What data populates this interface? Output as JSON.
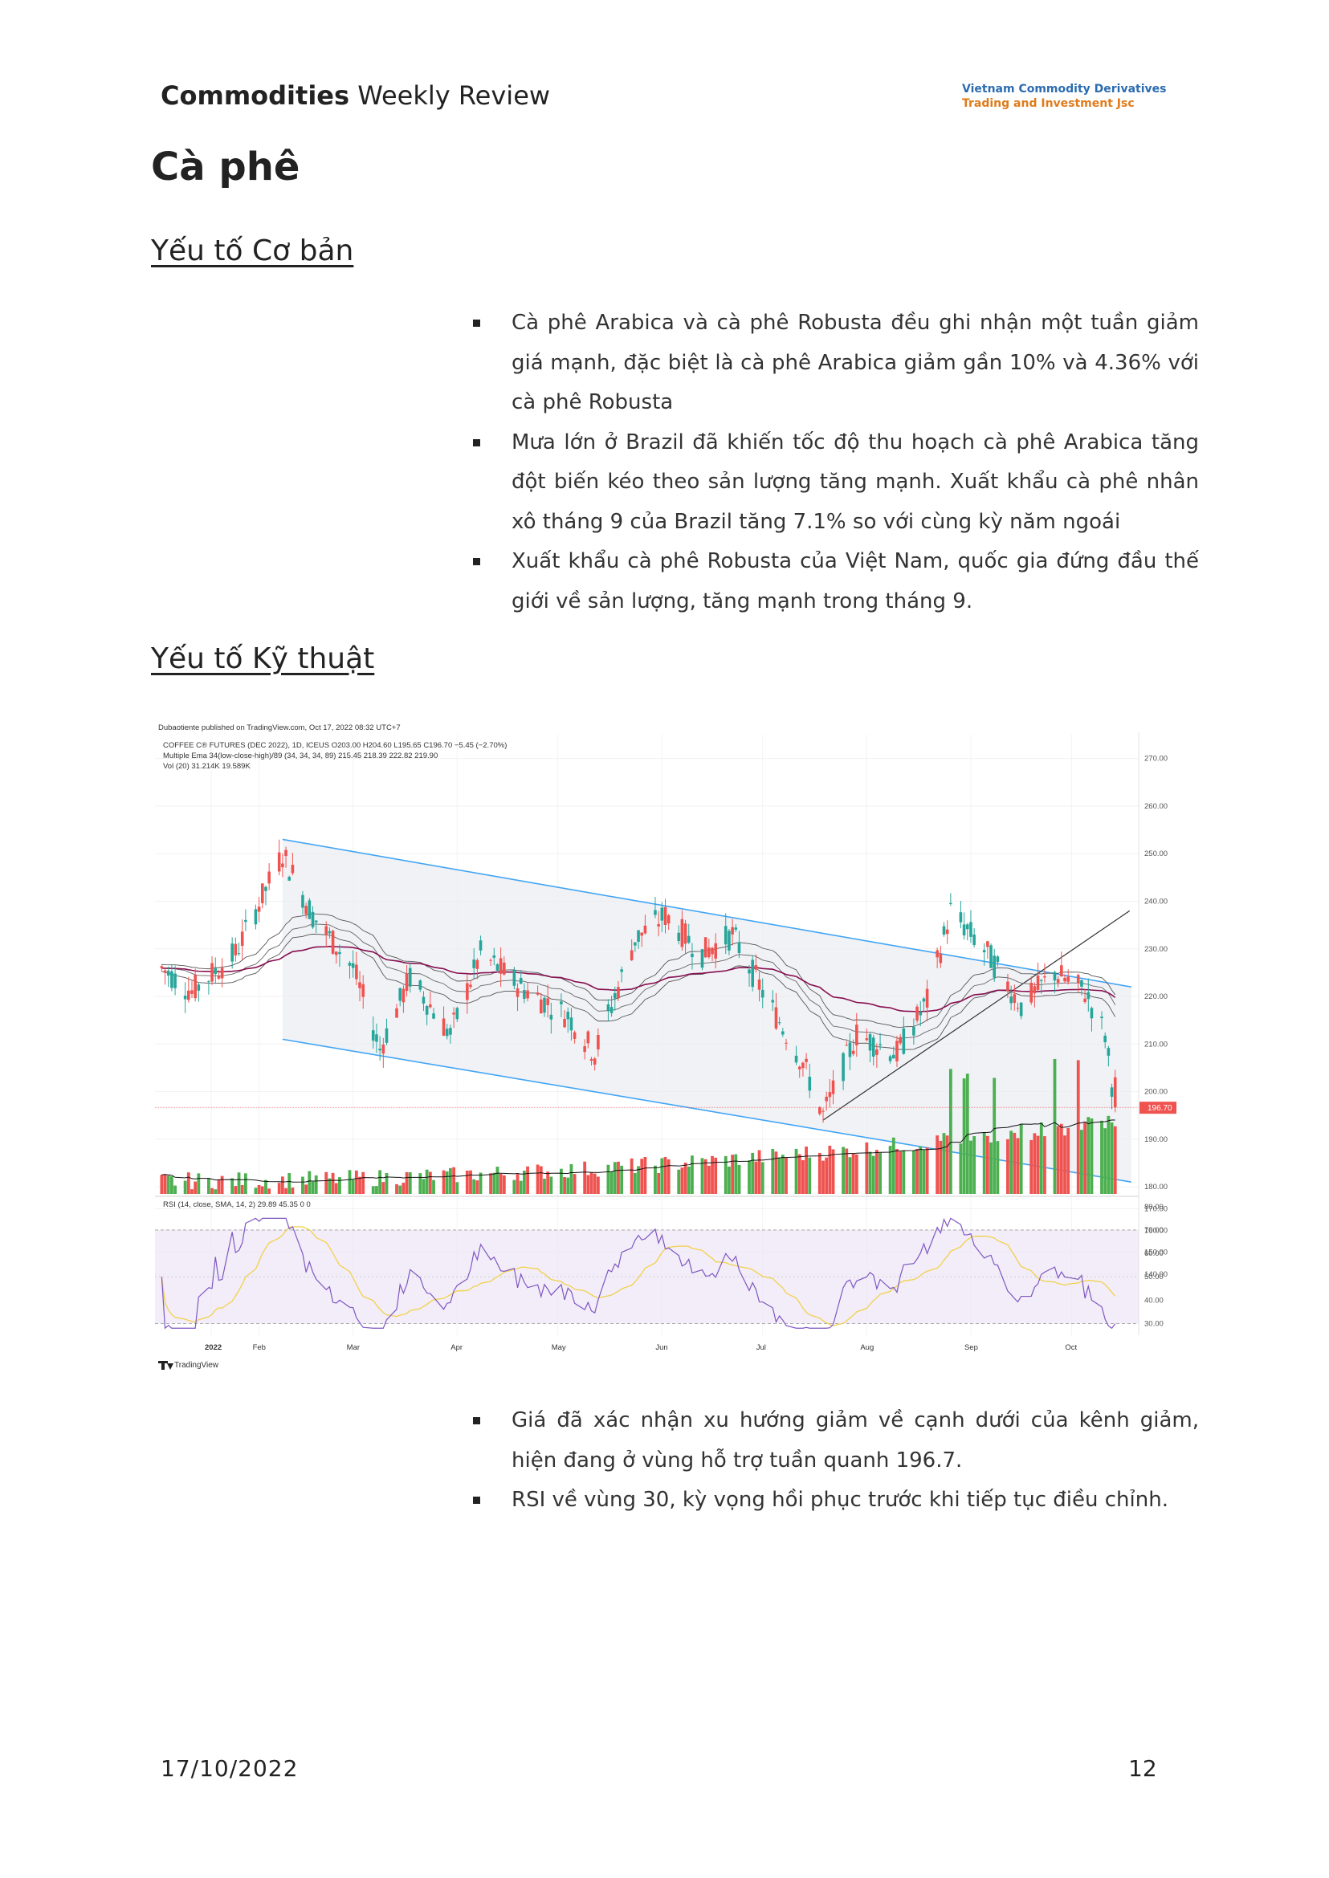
{
  "header": {
    "title_bold": "Commodities",
    "title_rest": "Weekly Review",
    "company_line1": "Vietnam Commodity Derivatives",
    "company_line2": "Trading and Investment Jsc"
  },
  "section_title": "Cà phê",
  "fundamentals": {
    "heading": "Yếu tố Cơ bản",
    "bullets": [
      "Cà phê Arabica và cà phê Robusta đều ghi nhận một tuần giảm giá mạnh, đặc biệt là cà phê Arabica giảm gần 10% và 4.36% với cà phê Robusta",
      "Mưa lớn ở Brazil đã khiến tốc độ thu hoạch cà phê Arabica tăng đột biến kéo theo sản lượng tăng mạnh. Xuất khẩu cà phê nhân xô tháng 9 của Brazil tăng 7.1% so với cùng kỳ năm ngoái",
      "Xuất khẩu cà phê Robusta của Việt Nam, quốc gia đứng đầu thế giới về sản lượng, tăng mạnh trong tháng 9."
    ]
  },
  "technical": {
    "heading": "Yếu tố Kỹ thuật",
    "bullets": [
      "Giá đã xác nhận xu hướng giảm về cạnh dưới của kênh giảm, hiện đang ở vùng hỗ trợ tuần quanh 196.7.",
      "RSI về vùng 30, kỳ vọng hồi phục trước khi tiếp tục điều chỉnh."
    ]
  },
  "chart": {
    "published": "Dubaotiente published on TradingView.com, Oct 17, 2022 08:32 UTC+7",
    "symbol_line": "COFFEE C® FUTURES (DEC 2022), 1D, ICEUS  O203.00  H204.60  L195.65  C196.70  −5.45 (−2.70%)",
    "ema_line": "Multiple Ema 34(low-close-high)/89 (34, 34, 34, 89)  215.45  218.39  222.82  219.90",
    "vol_line": "Vol (20)  31.214K  19.589K",
    "rsi_line": "RSI (14, close, SMA, 14, 2)  29.89  45.35  0  0",
    "price_label": "196.70",
    "footer_brand": "TradingView",
    "colors": {
      "up": "#26a69a",
      "up_bar": "#4caf50",
      "down": "#ef5350",
      "channel": "#42a5f5",
      "rsi": "#7e57c2",
      "rsi_ma": "#f2d14b",
      "ema_long": "#880e4f"
    }
  },
  "chart_data": {
    "type": "candlestick",
    "title": "COFFEE C® FUTURES (DEC 2022), 1D, ICEUS",
    "x_tick_labels": [
      "2022",
      "Feb",
      "Mar",
      "Apr",
      "May",
      "Jun",
      "Jul",
      "Aug",
      "Sep",
      "Oct"
    ],
    "price_axis_labels": [
      "270.00",
      "260.00",
      "250.00",
      "240.00",
      "230.00",
      "220.00",
      "210.00",
      "200.00",
      "190.00",
      "180.00",
      "170.00",
      "160.00",
      "150.00",
      "140.00"
    ],
    "rsi_axis_labels": [
      "80.00",
      "70.00",
      "60.00",
      "50.00",
      "40.00",
      "30.00"
    ],
    "ylim_price": [
      178,
      275
    ],
    "close_anchors": [
      {
        "date": "2022-01-03",
        "close": 226
      },
      {
        "date": "2022-01-12",
        "close": 221
      },
      {
        "date": "2022-01-25",
        "close": 229
      },
      {
        "date": "2022-02-08",
        "close": 250
      },
      {
        "date": "2022-02-17",
        "close": 237
      },
      {
        "date": "2022-03-01",
        "close": 226
      },
      {
        "date": "2022-03-09",
        "close": 209
      },
      {
        "date": "2022-03-18",
        "close": 224
      },
      {
        "date": "2022-03-30",
        "close": 212
      },
      {
        "date": "2022-04-08",
        "close": 229
      },
      {
        "date": "2022-04-20",
        "close": 222
      },
      {
        "date": "2022-05-04",
        "close": 216
      },
      {
        "date": "2022-05-12",
        "close": 208
      },
      {
        "date": "2022-05-24",
        "close": 232
      },
      {
        "date": "2022-06-02",
        "close": 237
      },
      {
        "date": "2022-06-13",
        "close": 229
      },
      {
        "date": "2022-06-22",
        "close": 233
      },
      {
        "date": "2022-07-01",
        "close": 221
      },
      {
        "date": "2022-07-13",
        "close": 206
      },
      {
        "date": "2022-07-19",
        "close": 195
      },
      {
        "date": "2022-07-29",
        "close": 212
      },
      {
        "date": "2022-08-10",
        "close": 208
      },
      {
        "date": "2022-08-19",
        "close": 219
      },
      {
        "date": "2022-08-26",
        "close": 238
      },
      {
        "date": "2022-09-06",
        "close": 229
      },
      {
        "date": "2022-09-16",
        "close": 218
      },
      {
        "date": "2022-09-26",
        "close": 225
      },
      {
        "date": "2022-10-05",
        "close": 221
      },
      {
        "date": "2022-10-11",
        "close": 212
      },
      {
        "date": "2022-10-14",
        "close": 196.7
      }
    ],
    "channel": {
      "upper": [
        {
          "date": "2022-02-08",
          "price": 253
        },
        {
          "date": "2022-10-14",
          "price": 222
        }
      ],
      "lower": [
        {
          "date": "2022-02-08",
          "price": 211
        },
        {
          "date": "2022-10-14",
          "price": 181
        }
      ]
    },
    "trendline": [
      {
        "date": "2022-07-19",
        "price": 194
      },
      {
        "date": "2022-10-14",
        "price": 238
      }
    ],
    "last_close": 196.7
  },
  "footer": {
    "date": "17/10/2022",
    "page": "12"
  }
}
